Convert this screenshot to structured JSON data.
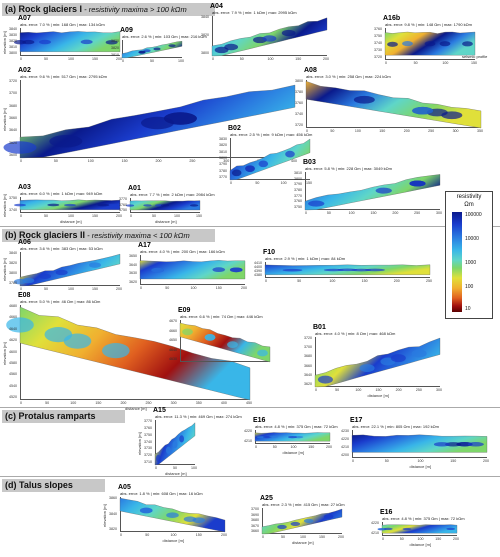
{
  "sections": [
    {
      "label": "(a) Rock glaciers I",
      "sub": " - resistivity maxima > 100 kΩm"
    },
    {
      "label": "(b) Rock glaciers II",
      "sub": " - resistivity maxima < 100 kΩm"
    },
    {
      "label": "(c) Protalus ramparts",
      "sub": ""
    },
    {
      "label": "(d) Talus slopes",
      "sub": ""
    }
  ],
  "axis_titles": {
    "elevation": "elevation [m]",
    "distance": "distance [m]"
  },
  "legend": {
    "title": "resistivity",
    "unit": "Ωm",
    "ticks": [
      "100000",
      "10000",
      "1000",
      "100",
      "10"
    ]
  },
  "annotations": {
    "seismic": "seismic profile"
  },
  "panels": {
    "A07": {
      "id": "A07",
      "stats": "abs. error: 7.0 % | min: 168 Ωm | max: 134 kΩm",
      "yticks": [
        "3840",
        "3830",
        "3820",
        "3810",
        "3800"
      ],
      "xticks": [
        "0",
        "50",
        "100",
        "150",
        "200"
      ]
    },
    "A09": {
      "id": "A09",
      "stats": "abs. error: 2.6 % | min: 103 Ωm | max: 216 kΩm",
      "yticks": [
        "3830",
        "3820",
        "3810"
      ],
      "xticks": [
        "0",
        "50",
        "100"
      ]
    },
    "A04": {
      "id": "A04",
      "stats": "abs. error: 7.9 % | min: 1 kΩm | max: 2995 kΩm",
      "yticks": [
        "3840",
        "3820",
        "3800"
      ],
      "xticks": [
        "0",
        "50",
        "100",
        "150",
        "200"
      ]
    },
    "A16b": {
      "id": "A16b",
      "stats": "abs. error: 9.8 % | min: 148 Ωm | max: 1790 kΩm",
      "yticks": [
        "3760",
        "3750",
        "3740",
        "3730",
        "3720"
      ],
      "xticks": [
        "0",
        "50",
        "100",
        "150"
      ]
    },
    "A02": {
      "id": "A02",
      "stats": "abs. error: 9.6 % | min: 517 Ωm | max: 2795 kΩm",
      "yticks": [
        "3720",
        "3700",
        "3680",
        "3660",
        "3640",
        "3620",
        "3600"
      ],
      "xticks": [
        "0",
        "50",
        "100",
        "150",
        "200",
        "250",
        "300",
        "350",
        "400"
      ]
    },
    "A08": {
      "id": "A08",
      "stats": "abs. error: 3.0 % | min: 258 Ωm | max: 224 kΩm",
      "yticks": [
        "3800",
        "3780",
        "3760",
        "3740",
        "3720"
      ],
      "xticks": [
        "0",
        "50",
        "100",
        "150",
        "200",
        "250",
        "300",
        "350"
      ]
    },
    "B02": {
      "id": "B02",
      "stats": "abs. error: 2.5 % | min: 9 kΩm | max: 456 kΩm",
      "yticks": [
        "3830",
        "3820",
        "3810",
        "3800",
        "3790",
        "3780",
        "3770"
      ],
      "xticks": [
        "0",
        "50",
        "100",
        "150"
      ]
    },
    "B03": {
      "id": "B03",
      "stats": "abs. error: 5.8 % | min: 228 Ωm | max: 3049 kΩm",
      "yticks": [
        "3810",
        "3800",
        "3790",
        "3780",
        "3770",
        "3760",
        "3750"
      ],
      "xticks": [
        "0",
        "50",
        "100",
        "150",
        "200",
        "250",
        "300"
      ]
    },
    "A03": {
      "id": "A03",
      "stats": "abs. error: 6.0 % | min: 1 kΩm | max: 949 kΩm",
      "yticks": [
        "3750",
        "3740"
      ],
      "xticks": [
        "0",
        "50",
        "100",
        "150",
        "200"
      ]
    },
    "A01": {
      "id": "A01",
      "stats": "abs. error: 7.7 % | min: 2 kΩm | max: 2984 kΩm",
      "yticks": [
        "3770",
        "3760",
        "3750"
      ],
      "xticks": [
        "0",
        "50",
        "100",
        "150"
      ]
    },
    "A06": {
      "id": "A06",
      "stats": "abs. error: 3.6 % | min: 383 Ωm | max: 53 kΩm",
      "yticks": [
        "3840",
        "3820",
        "3800",
        "3780"
      ],
      "xticks": [
        "0",
        "50",
        "100",
        "150",
        "200"
      ]
    },
    "A17": {
      "id": "A17",
      "stats": "abs. error: 4.0 % | min: 200 Ωm | max: 166 kΩm",
      "yticks": [
        "3650",
        "3640",
        "3630",
        "3620"
      ],
      "xticks": [
        "0",
        "50",
        "100",
        "150",
        "200"
      ]
    },
    "F10": {
      "id": "F10",
      "stats": "abs. error: 2.9 % | min: 1 kΩm | max: 84 kΩm",
      "yticks": [
        "4410",
        "4400",
        "4390",
        "4380"
      ],
      "xticks": [
        "0",
        "50",
        "100",
        "150",
        "200",
        "250"
      ]
    },
    "E08": {
      "id": "E08",
      "stats": "abs. error: 5.0 % | min: 46 Ωm | max: 86 kΩm",
      "yticks": [
        "4680",
        "4660",
        "4640",
        "4620",
        "4600",
        "4580",
        "4560",
        "4540",
        "4520"
      ],
      "xticks": [
        "0",
        "50",
        "100",
        "150",
        "200",
        "250",
        "300",
        "350",
        "400",
        "450"
      ]
    },
    "E09": {
      "id": "E09",
      "stats": "abs. error: 6.6 % | min: 74 Ωm | max: 446 kΩm",
      "yticks": [
        "4670",
        "4660",
        "4650",
        "4640",
        "4630"
      ],
      "xticks": []
    },
    "B01": {
      "id": "B01",
      "stats": "abs. error: 4.0 % | min: 8 Ωm | max: 468 kΩm",
      "yticks": [
        "3720",
        "3700",
        "3680",
        "3660",
        "3640",
        "3620"
      ],
      "xticks": [
        "0",
        "50",
        "100",
        "150",
        "200",
        "250",
        "300"
      ]
    },
    "A15": {
      "id": "A15",
      "stats": "abs. error: 11.3 % | min: 469 Ωm | max: 274 kΩm",
      "yticks": [
        "3770",
        "3760",
        "3750",
        "3740",
        "3730",
        "3720",
        "3710"
      ],
      "xticks": [
        "0",
        "50",
        "100"
      ]
    },
    "E16c": {
      "id": "E16",
      "stats": "abs. error: 4.8 % | min: 375 Ωm | max: 72 kΩm",
      "yticks": [
        "4220",
        "4210"
      ],
      "xticks": [
        "0",
        "50",
        "100",
        "150",
        "200"
      ]
    },
    "E17": {
      "id": "E17",
      "stats": "abs. error: 22.1 % | min: 805 Ωm | max: 192 kΩm",
      "yticks": [
        "4230",
        "4220",
        "4210",
        "4200"
      ],
      "xticks": [
        "0",
        "50",
        "100",
        "150",
        "200"
      ]
    },
    "A05": {
      "id": "A05",
      "stats": "abs. error: 1.8 % | min: 608 Ωm | max: 16 kΩm",
      "yticks": [
        "3860",
        "3840",
        "3820"
      ],
      "xticks": [
        "0",
        "50",
        "100",
        "150",
        "200"
      ]
    },
    "A25": {
      "id": "A25",
      "stats": "abs. error: 2.3 % | min: 415 Ωm | max: 27 kΩm",
      "yticks": [
        "3700",
        "3690",
        "3680",
        "3670",
        "3660"
      ],
      "xticks": [
        "0",
        "50",
        "100",
        "150",
        "200"
      ]
    },
    "E16d": {
      "id": "E16",
      "stats": "abs. error: 4.8 % | min: 375 Ωm | max: 72 kΩm",
      "yticks": [
        "4220",
        "4210"
      ],
      "xticks": [
        "0",
        "50",
        "100",
        "150",
        "200"
      ]
    }
  }
}
